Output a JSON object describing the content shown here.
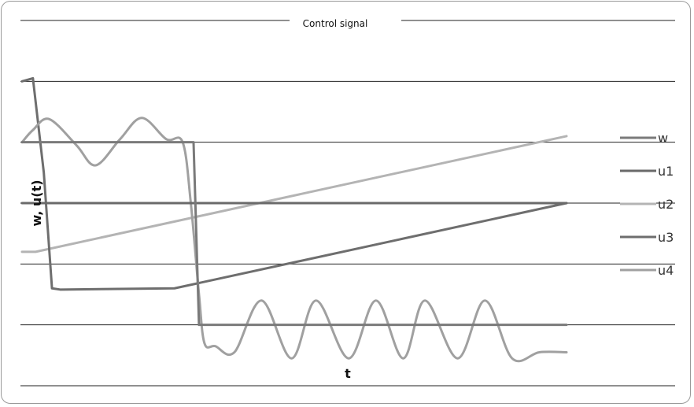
{
  "chart_data": {
    "type": "line",
    "title": "Control signal",
    "xlabel": "t",
    "ylabel": "w, u(t)",
    "xlim": [
      0,
      10
    ],
    "ylim": [
      -3,
      3
    ],
    "gridlines_y": [
      -3,
      -2,
      -1,
      0,
      1,
      2,
      3
    ],
    "grid": true,
    "legend_position": "right",
    "series": [
      {
        "name": "w",
        "color": "#7a7a7a",
        "x": [
          0,
          0.2,
          0.22,
          3.15,
          3.25,
          10
        ],
        "y": [
          1,
          1,
          1,
          1,
          -2,
          -2
        ]
      },
      {
        "name": "u1",
        "color": "#6a6a6a",
        "x": [
          0,
          10
        ],
        "y": [
          0,
          0
        ]
      },
      {
        "name": "u2",
        "color": "#b4b4b4",
        "x": [
          0,
          0.25,
          10
        ],
        "y": [
          -0.8,
          -0.8,
          1.1
        ]
      },
      {
        "name": "u3",
        "color": "#6e6e6e",
        "x": [
          0,
          0.2,
          0.4,
          0.55,
          0.7,
          2.8,
          10
        ],
        "y": [
          2,
          2.05,
          0.5,
          -1.4,
          -1.42,
          -1.4,
          0
        ]
      },
      {
        "name": "u4",
        "color": "#a0a0a0",
        "note_shape": "sinusoid 1 ± 0.4 until t≈3, then -2.3 ± 0.4",
        "x": [
          0,
          0.2,
          0.5,
          1.0,
          1.35,
          1.8,
          2.2,
          2.65,
          2.95,
          3.1,
          3.25,
          3.35,
          3.55,
          3.9,
          4.4,
          4.95,
          5.4,
          6.0,
          6.5,
          7.0,
          7.4,
          8.0,
          8.5,
          9.0,
          9.5,
          10
        ],
        "y": [
          1,
          1.2,
          1.38,
          0.95,
          0.62,
          1.05,
          1.4,
          1.05,
          1.0,
          0,
          -1.5,
          -2.3,
          -2.35,
          -2.45,
          -1.6,
          -2.55,
          -1.6,
          -2.55,
          -1.6,
          -2.55,
          -1.6,
          -2.55,
          -1.6,
          -2.55,
          -2.45,
          -2.45
        ]
      }
    ],
    "legend": [
      "w",
      "u1",
      "u2",
      "u3",
      "u4"
    ]
  }
}
